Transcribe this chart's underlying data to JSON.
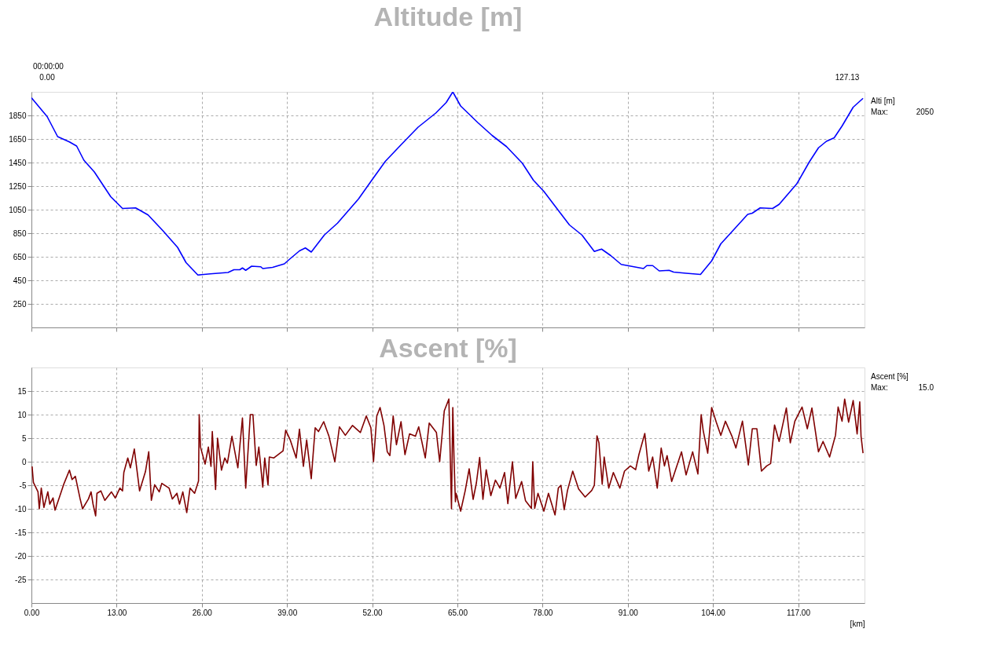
{
  "chart_data": [
    {
      "type": "line",
      "title": "Altitude [m]",
      "series": [
        {
          "color": "#0000ff",
          "x": [
            0,
            2.4,
            4.0,
            5.8,
            6.9,
            8.0,
            9.6,
            12.1,
            13.9,
            15.9,
            17.8,
            20.0,
            22.3,
            23.6,
            25.4,
            27.3,
            30.0,
            30.9,
            31.8,
            32.2,
            32.7,
            33.6,
            35.0,
            35.3,
            36.8,
            38.6,
            39.3,
            40.9,
            41.8,
            42.7,
            44.7,
            46.7,
            49.9,
            52.0,
            54.0,
            56.3,
            59.0,
            61.7,
            63.3,
            64.3,
            65.5,
            68.1,
            70.3,
            72.5,
            74.9,
            76.6,
            78.2,
            79.7,
            82.1,
            84.0,
            85.9,
            87.0,
            88.4,
            90.0,
            93.4,
            93.9,
            94.8,
            95.8,
            97.3,
            98.0,
            99.9,
            102.1,
            103.8,
            105.2,
            106.6,
            109.3,
            110.0,
            111.2,
            113.1,
            114.1,
            116.8,
            118.7,
            120.1,
            121.3,
            122.5,
            123.7,
            125.4,
            126.9
          ],
          "values": [
            2000,
            1840,
            1670,
            1625,
            1590,
            1470,
            1370,
            1160,
            1060,
            1065,
            1005,
            875,
            730,
            600,
            495,
            505,
            517,
            540,
            540,
            555,
            535,
            570,
            565,
            550,
            560,
            590,
            625,
            700,
            725,
            690,
            835,
            935,
            1140,
            1305,
            1460,
            1595,
            1750,
            1870,
            1960,
            2050,
            1930,
            1790,
            1680,
            1585,
            1445,
            1300,
            1205,
            1095,
            920,
            835,
            695,
            715,
            660,
            585,
            550,
            575,
            575,
            530,
            535,
            520,
            510,
            500,
            615,
            760,
            845,
            1010,
            1020,
            1065,
            1060,
            1095,
            1270,
            1455,
            1575,
            1630,
            1660,
            1760,
            1920,
            1995
          ]
        }
      ],
      "xlim": [
        0,
        127.13
      ],
      "xticks": [
        0,
        13,
        26,
        39,
        52,
        65,
        78,
        91,
        104,
        117
      ],
      "ylim": [
        50,
        2050
      ],
      "yticks": [
        250,
        450,
        650,
        850,
        1050,
        1250,
        1450,
        1650,
        1850
      ],
      "grid": true,
      "tick_labels": "y",
      "annotations": [
        "00:00:00",
        "0.00",
        "127.13",
        "Alti [m]",
        "Max:",
        "2050"
      ]
    },
    {
      "type": "line",
      "title": "Ascent [%]",
      "xlabel": "[km]",
      "series": [
        {
          "color": "#800000",
          "x": [
            0.1,
            0.3,
            1.0,
            1.2,
            1.5,
            1.9,
            2.5,
            2.8,
            3.3,
            3.6,
            4.3,
            4.9,
            5.8,
            6.2,
            6.7,
            7.4,
            7.8,
            8.7,
            9.1,
            9.4,
            9.8,
            10.0,
            10.6,
            11.2,
            12.2,
            12.8,
            13.5,
            13.9,
            14.1,
            14.7,
            15.1,
            15.7,
            16.5,
            17.4,
            17.9,
            18.3,
            18.8,
            19.5,
            19.9,
            21.0,
            21.5,
            22.2,
            22.6,
            23.1,
            23.7,
            24.2,
            24.9,
            25.5,
            25.6,
            25.8,
            26.5,
            27.0,
            27.4,
            27.6,
            28.1,
            28.4,
            29.0,
            29.5,
            29.9,
            30.6,
            31.5,
            32.2,
            32.7,
            33.4,
            33.8,
            34.3,
            34.7,
            35.3,
            35.6,
            36.1,
            36.3,
            37.0,
            38.4,
            38.8,
            39.5,
            40.4,
            40.9,
            41.5,
            42.0,
            42.7,
            43.3,
            43.8,
            44.6,
            45.4,
            46.3,
            47.0,
            47.9,
            49.0,
            50.2,
            51.1,
            51.8,
            52.2,
            52.7,
            53.2,
            53.8,
            54.3,
            54.7,
            55.2,
            55.7,
            56.4,
            57.0,
            57.7,
            58.6,
            59.1,
            60.1,
            60.7,
            61.8,
            62.3,
            63.0,
            63.7,
            64.1,
            64.3,
            64.5,
            64.7,
            64.8,
            65.5,
            66.2,
            66.8,
            67.4,
            67.9,
            68.4,
            68.9,
            69.4,
            70.1,
            70.8,
            71.5,
            72.2,
            72.7,
            73.4,
            73.9,
            74.8,
            75.4,
            76.3,
            76.5,
            76.8,
            77.3,
            78.2,
            78.9,
            79.9,
            80.4,
            80.8,
            81.3,
            81.8,
            82.6,
            83.5,
            84.5,
            85.5,
            85.9,
            86.3,
            86.6,
            87.1,
            87.4,
            88.1,
            88.8,
            89.8,
            90.5,
            91.4,
            92.2,
            92.7,
            93.6,
            94.2,
            94.8,
            95.5,
            96.1,
            96.6,
            97.0,
            97.7,
            99.2,
            99.9,
            100.9,
            101.7,
            102.2,
            102.5,
            103.2,
            103.8,
            104.5,
            105.2,
            105.9,
            106.9,
            107.5,
            108.5,
            109.4,
            110.0,
            110.7,
            111.4,
            112.2,
            112.8,
            113.4,
            114.1,
            115.2,
            115.8,
            116.5,
            117.6,
            118.4,
            119.1,
            120.1,
            120.8,
            121.8,
            122.7,
            123.1,
            123.7,
            124.1,
            124.7,
            125.4,
            126.0,
            126.4,
            126.6,
            126.9
          ],
          "values": [
            -1,
            -4.4,
            -6.4,
            -10,
            -5.6,
            -9.7,
            -6.4,
            -9,
            -7.7,
            -10.3,
            -7.4,
            -4.9,
            -1.8,
            -3.8,
            -3.1,
            -7.7,
            -10,
            -7.9,
            -6.4,
            -9,
            -11.5,
            -6.7,
            -6.2,
            -8.2,
            -6.4,
            -7.7,
            -5.6,
            -6.2,
            -2.3,
            0.8,
            -1.3,
            2.7,
            -6.2,
            -2.1,
            2.1,
            -8.2,
            -4.9,
            -6.4,
            -4.6,
            -5.6,
            -7.9,
            -6.7,
            -9,
            -6.4,
            -10.8,
            -5.6,
            -6.7,
            -4.1,
            10,
            3.1,
            -0.5,
            3.1,
            -1,
            6.4,
            -5.9,
            5,
            -1.8,
            0.8,
            -0.3,
            5.4,
            -1.3,
            9.3,
            -5.6,
            10,
            10,
            -0.8,
            3.1,
            -5.4,
            0.8,
            -4.9,
            1,
            0.8,
            2.3,
            6.7,
            4.6,
            0.8,
            6.9,
            -1,
            4.6,
            -3.6,
            7.2,
            6.4,
            8.5,
            5.4,
            0,
            7.4,
            5.6,
            7.7,
            6.2,
            9.7,
            7.2,
            0,
            9.7,
            11.5,
            7.7,
            2.1,
            1.3,
            9.7,
            3.6,
            8.5,
            1.5,
            5.9,
            5.4,
            7.4,
            0.8,
            8.2,
            6.2,
            0,
            10.8,
            13.3,
            -10,
            11.5,
            0,
            -8.5,
            -6.7,
            -10.5,
            -6.1,
            -1.5,
            -8,
            -4.5,
            0.9,
            -8,
            -1.7,
            -7.2,
            -3.9,
            -5.6,
            -2.3,
            -8.9,
            0,
            -7.8,
            -4.2,
            -8.3,
            -9.9,
            0,
            -9.9,
            -6.7,
            -10.5,
            -6.7,
            -11.3,
            -5.6,
            -5,
            -10.2,
            -6.1,
            -2,
            -5.8,
            -7.5,
            -6.1,
            -5,
            5.5,
            4,
            -4.8,
            1,
            -5.6,
            -2.3,
            -5.6,
            -2,
            -0.9,
            -1.7,
            1.5,
            6,
            -2,
            1,
            -5.6,
            2.9,
            -0.9,
            1.3,
            -4.2,
            2.1,
            -2.8,
            2.1,
            -2.6,
            10,
            6.7,
            1.8,
            11.5,
            8.4,
            5.6,
            8.6,
            5.4,
            2.9,
            8.6,
            -0.7,
            7,
            7,
            -2,
            -0.9,
            -0.4,
            7.8,
            4.3,
            11.4,
            4,
            8.6,
            11.6,
            7,
            11.4,
            2.1,
            4.3,
            1,
            5.6,
            11.6,
            8.6,
            13.3,
            8.4,
            13,
            5.9,
            12.7,
            5.4,
            1.8
          ]
        }
      ],
      "xlim": [
        0,
        127.13
      ],
      "xticks": [
        {
          "value": 0,
          "label": "0.00"
        },
        {
          "value": 13,
          "label": "13.00"
        },
        {
          "value": 26,
          "label": "26.00"
        },
        {
          "value": 39,
          "label": "39.00"
        },
        {
          "value": 52,
          "label": "52.00"
        },
        {
          "value": 65,
          "label": "65.00"
        },
        {
          "value": 78,
          "label": "78.00"
        },
        {
          "value": 91,
          "label": "91.00"
        },
        {
          "value": 104,
          "label": "104.00"
        },
        {
          "value": 117,
          "label": "117.00"
        }
      ],
      "ylim": [
        -30,
        20
      ],
      "yticks": [
        -25,
        -20,
        -15,
        -10,
        -5,
        0,
        5,
        10,
        15
      ],
      "grid": true,
      "annotations": [
        "Ascent [%]",
        "Max:",
        "15.0"
      ]
    }
  ]
}
